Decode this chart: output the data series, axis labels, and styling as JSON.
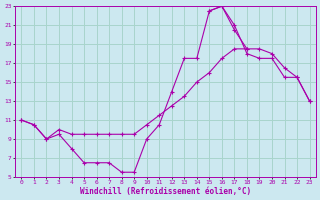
{
  "xlabel": "Windchill (Refroidissement éolien,°C)",
  "background_color": "#cce8f0",
  "grid_color": "#a8d4cc",
  "line_color": "#aa00aa",
  "xlim": [
    -0.5,
    23.5
  ],
  "ylim": [
    5,
    23
  ],
  "xticks": [
    0,
    1,
    2,
    3,
    4,
    5,
    6,
    7,
    8,
    9,
    10,
    11,
    12,
    13,
    14,
    15,
    16,
    17,
    18,
    19,
    20,
    21,
    22,
    23
  ],
  "yticks": [
    5,
    7,
    9,
    11,
    13,
    15,
    17,
    19,
    21,
    23
  ],
  "series": [
    {
      "x": [
        0,
        1,
        2,
        3,
        4,
        5,
        6,
        7,
        8,
        9,
        10,
        11,
        12,
        13,
        14,
        15,
        16,
        17,
        18
      ],
      "y": [
        11,
        10.5,
        9.0,
        9.5,
        8.0,
        6.5,
        6.5,
        6.5,
        5.5,
        5.5,
        9.0,
        10.5,
        14.0,
        17.5,
        17.5,
        22.5,
        23.0,
        20.5,
        18.5
      ]
    },
    {
      "x": [
        0,
        1,
        2,
        3,
        4,
        5,
        6,
        7,
        8,
        9,
        10,
        11,
        12,
        13,
        14,
        15,
        16,
        17,
        18,
        19,
        20,
        21,
        22,
        23
      ],
      "y": [
        11,
        10.5,
        9.0,
        10.0,
        9.5,
        9.5,
        9.5,
        9.5,
        9.5,
        9.5,
        10.5,
        11.5,
        12.5,
        13.5,
        15.0,
        16.0,
        17.5,
        18.5,
        18.5,
        18.5,
        18.0,
        16.5,
        15.5,
        13.0
      ]
    },
    {
      "x": [
        15,
        16,
        17,
        18,
        19,
        20,
        21,
        22,
        23
      ],
      "y": [
        22.5,
        23.0,
        21.0,
        18.0,
        17.5,
        17.5,
        15.5,
        15.5,
        13.0
      ]
    }
  ]
}
